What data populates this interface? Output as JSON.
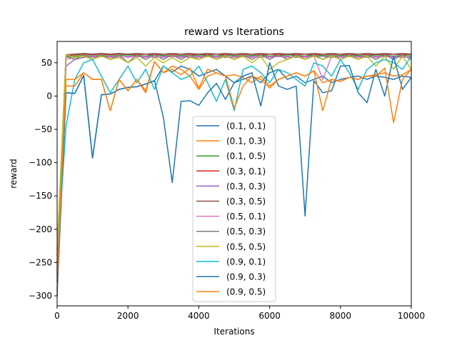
{
  "chart_data": {
    "type": "line",
    "title": "reward vs Iterations",
    "xlabel": "Iterations",
    "ylabel": "reward",
    "xlim": [
      0,
      10000
    ],
    "ylim": [
      -315,
      82
    ],
    "xticks": [
      0,
      2000,
      4000,
      6000,
      8000,
      10000
    ],
    "yticks": [
      -300,
      -250,
      -200,
      -150,
      -100,
      -50,
      0,
      50
    ],
    "legend_position": "lower-center",
    "grid": false,
    "x": [
      0,
      250,
      500,
      750,
      1000,
      1250,
      1500,
      1750,
      2000,
      2250,
      2500,
      2750,
      3000,
      3250,
      3500,
      3750,
      4000,
      4250,
      4500,
      4750,
      5000,
      5250,
      5500,
      5750,
      6000,
      6250,
      6500,
      6750,
      7000,
      7250,
      7500,
      7750,
      8000,
      8250,
      8500,
      8750,
      9000,
      9250,
      9500,
      9750,
      10000
    ],
    "series": [
      {
        "name": "(0.1, 0.1)",
        "color": "#1f77b4",
        "values": [
          -300,
          5,
          4,
          31,
          -93,
          2,
          3,
          10,
          13,
          14,
          18,
          23,
          45,
          36,
          45,
          40,
          30,
          35,
          40,
          30,
          20,
          25,
          30,
          20,
          35,
          40,
          25,
          30,
          20,
          25,
          30,
          20,
          25,
          28,
          30,
          25,
          30,
          28,
          25,
          30,
          28
        ]
      },
      {
        "name": "(0.1, 0.3)",
        "color": "#ff7f0e",
        "values": [
          -290,
          15,
          15,
          35,
          25,
          25,
          -22,
          25,
          8,
          25,
          8,
          52,
          35,
          45,
          40,
          30,
          10,
          30,
          35,
          30,
          32,
          28,
          20,
          30,
          15,
          25,
          30,
          35,
          30,
          38,
          20,
          25,
          22,
          28,
          25,
          30,
          32,
          35,
          30,
          32,
          40
        ]
      },
      {
        "name": "(0.1, 0.5)",
        "color": "#2ca02c",
        "values": [
          -260,
          58,
          60,
          61,
          60,
          61,
          60,
          61,
          62,
          61,
          60,
          62,
          61,
          60,
          61,
          60,
          62,
          61,
          60,
          62,
          61,
          60,
          61,
          62,
          60,
          61,
          62,
          61,
          60,
          62,
          61,
          60,
          61,
          62,
          61,
          60,
          62,
          61,
          60,
          61,
          62
        ]
      },
      {
        "name": "(0.3, 0.1)",
        "color": "#d62728",
        "values": [
          -270,
          60,
          62,
          63,
          62,
          63,
          62,
          63,
          63,
          62,
          63,
          62,
          63,
          62,
          63,
          62,
          63,
          62,
          63,
          62,
          63,
          62,
          63,
          62,
          63,
          62,
          63,
          62,
          63,
          62,
          63,
          62,
          63,
          62,
          63,
          62,
          63,
          62,
          63,
          62,
          63
        ]
      },
      {
        "name": "(0.3, 0.3)",
        "color": "#9467bd",
        "values": [
          -250,
          45,
          55,
          58,
          60,
          59,
          60,
          58,
          60,
          59,
          60,
          58,
          60,
          59,
          60,
          58,
          60,
          59,
          60,
          58,
          60,
          59,
          60,
          58,
          60,
          59,
          60,
          58,
          60,
          59,
          60,
          58,
          60,
          59,
          60,
          58,
          60,
          59,
          60,
          58,
          60
        ]
      },
      {
        "name": "(0.3, 0.5)",
        "color": "#8c564b",
        "values": [
          -265,
          62,
          63,
          64,
          63,
          64,
          63,
          64,
          63,
          64,
          63,
          64,
          63,
          64,
          63,
          64,
          63,
          64,
          63,
          64,
          63,
          64,
          63,
          64,
          63,
          64,
          63,
          64,
          63,
          64,
          63,
          64,
          63,
          64,
          63,
          64,
          63,
          64,
          63,
          64,
          63
        ]
      },
      {
        "name": "(0.5, 0.1)",
        "color": "#e377c2",
        "values": [
          -255,
          55,
          58,
          60,
          58,
          60,
          58,
          60,
          58,
          60,
          58,
          60,
          58,
          60,
          58,
          60,
          58,
          60,
          58,
          60,
          58,
          60,
          58,
          60,
          58,
          60,
          58,
          60,
          58,
          60,
          25,
          60,
          58,
          60,
          58,
          60,
          58,
          60,
          58,
          60,
          58
        ]
      },
      {
        "name": "(0.5, 0.3)",
        "color": "#7f7f7f",
        "values": [
          -240,
          60,
          55,
          62,
          55,
          62,
          55,
          62,
          50,
          62,
          55,
          62,
          55,
          62,
          55,
          62,
          55,
          62,
          55,
          62,
          55,
          62,
          55,
          62,
          55,
          62,
          55,
          62,
          55,
          62,
          55,
          62,
          55,
          62,
          55,
          62,
          55,
          62,
          55,
          62,
          55
        ]
      },
      {
        "name": "(0.5, 0.5)",
        "color": "#bcbd22",
        "values": [
          -230,
          62,
          58,
          60,
          55,
          60,
          55,
          58,
          50,
          58,
          45,
          58,
          50,
          58,
          50,
          58,
          55,
          60,
          55,
          60,
          55,
          60,
          50,
          60,
          40,
          50,
          55,
          60,
          55,
          60,
          55,
          60,
          55,
          60,
          55,
          60,
          45,
          60,
          40,
          60,
          40
        ]
      },
      {
        "name": "(0.9, 0.1)",
        "color": "#17becf",
        "values": [
          -250,
          -45,
          25,
          50,
          55,
          30,
          5,
          25,
          45,
          20,
          40,
          10,
          45,
          35,
          25,
          30,
          45,
          20,
          -8,
          25,
          -22,
          40,
          45,
          35,
          20,
          40,
          35,
          25,
          15,
          50,
          45,
          30,
          55,
          35,
          10,
          40,
          50,
          55,
          50,
          40,
          60
        ]
      },
      {
        "name": "(0.9, 0.3)",
        "color": "#1f77b4",
        "values": [
          -280,
          5,
          4,
          31,
          -93,
          2,
          3,
          10,
          13,
          14,
          18,
          23,
          -32,
          -130,
          -8,
          -7,
          -14,
          5,
          19,
          -5,
          20,
          30,
          35,
          -15,
          50,
          15,
          10,
          15,
          -180,
          23,
          5,
          8,
          45,
          46,
          5,
          -10,
          40,
          0,
          60,
          10,
          28
        ]
      },
      {
        "name": "(0.9, 0.5)",
        "color": "#ff7f0e",
        "values": [
          -275,
          25,
          25,
          35,
          25,
          25,
          -22,
          25,
          8,
          25,
          5,
          52,
          35,
          40,
          32,
          42,
          12,
          40,
          35,
          30,
          -18,
          15,
          30,
          25,
          12,
          25,
          30,
          35,
          30,
          38,
          -22,
          25,
          22,
          28,
          25,
          30,
          30,
          42,
          -40,
          25,
          40
        ]
      }
    ]
  }
}
